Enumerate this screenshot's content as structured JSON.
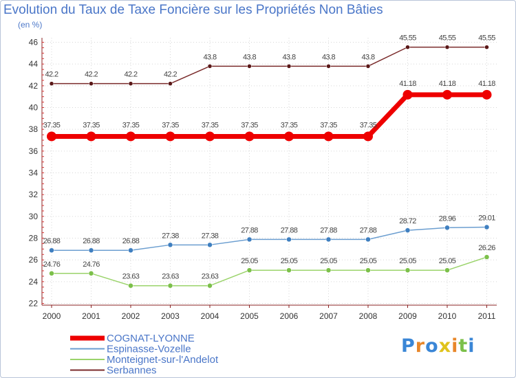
{
  "chart_data": {
    "type": "line",
    "title": "Evolution du Taux de Taxe Foncière sur les Propriétés Non Bâties",
    "ylabel": "(en %)",
    "xlabel": "",
    "x": [
      "2000",
      "2001",
      "2002",
      "2003",
      "2004",
      "2005",
      "2006",
      "2007",
      "2008",
      "2009",
      "2010",
      "2011"
    ],
    "ylim": [
      22,
      46
    ],
    "yticks": [
      "22",
      "24",
      "26",
      "28",
      "30",
      "32",
      "34",
      "36",
      "38",
      "40",
      "42",
      "44",
      "46"
    ],
    "series": [
      {
        "name": "Serbannes",
        "color": "#7a2a2a",
        "marker": "#5a1818",
        "width": 1.5,
        "r": 3,
        "values": [
          42.2,
          42.2,
          42.2,
          42.2,
          43.8,
          43.8,
          43.8,
          43.8,
          43.8,
          45.55,
          45.55,
          45.55
        ],
        "labels": [
          "42.2",
          "42.2",
          "42.2",
          "42.2",
          "43.8",
          "43.8",
          "43.8",
          "43.8",
          "43.8",
          "45.55",
          "45.55",
          "45.55"
        ]
      },
      {
        "name": "Espinasse-Vozelle",
        "color": "#6b9ed0",
        "marker": "#3f7fc0",
        "width": 1.5,
        "r": 3.5,
        "values": [
          26.88,
          26.88,
          26.88,
          27.38,
          27.38,
          27.88,
          27.88,
          27.88,
          27.88,
          28.72,
          28.96,
          29.01
        ],
        "labels": [
          "26.88",
          "26.88",
          "26.88",
          "27.38",
          "27.38",
          "27.88",
          "27.88",
          "27.88",
          "27.88",
          "28.72",
          "28.96",
          "29.01"
        ]
      },
      {
        "name": "Monteignet-sur-l'Andelot",
        "color": "#9ad36a",
        "marker": "#7cc04a",
        "width": 1.5,
        "r": 3.5,
        "values": [
          24.76,
          24.76,
          23.63,
          23.63,
          23.63,
          25.05,
          25.05,
          25.05,
          25.05,
          25.05,
          25.05,
          26.26
        ],
        "labels": [
          "24.76",
          "24.76",
          "23.63",
          "23.63",
          "23.63",
          "25.05",
          "25.05",
          "25.05",
          "25.05",
          "25.05",
          "25.05",
          "26.26"
        ]
      },
      {
        "name": "COGNAT-LYONNE",
        "color": "#ee0000",
        "marker": "#ee0000",
        "width": 7,
        "r": 7,
        "values": [
          37.35,
          37.35,
          37.35,
          37.35,
          37.35,
          37.35,
          37.35,
          37.35,
          37.35,
          41.18,
          41.18,
          41.18
        ],
        "labels": [
          "37.35",
          "37.35",
          "37.35",
          "37.35",
          "37.35",
          "37.35",
          "37.35",
          "37.35",
          "37.35",
          "41.18",
          "41.18",
          "41.18"
        ]
      }
    ],
    "legend": [
      "COGNAT-LYONNE",
      "Espinasse-Vozelle",
      "Monteignet-sur-l'Andelot",
      "Serbannes"
    ],
    "legend_position": "bottom-left"
  },
  "logo": {
    "letters": [
      "P",
      "r",
      "o",
      "x",
      "i",
      "t",
      "i"
    ],
    "colors": [
      "#3a86d6",
      "#e8872a",
      "#3a86d6",
      "#e0c31c",
      "#e8872a",
      "#7cc04a",
      "#3a86d6"
    ]
  }
}
